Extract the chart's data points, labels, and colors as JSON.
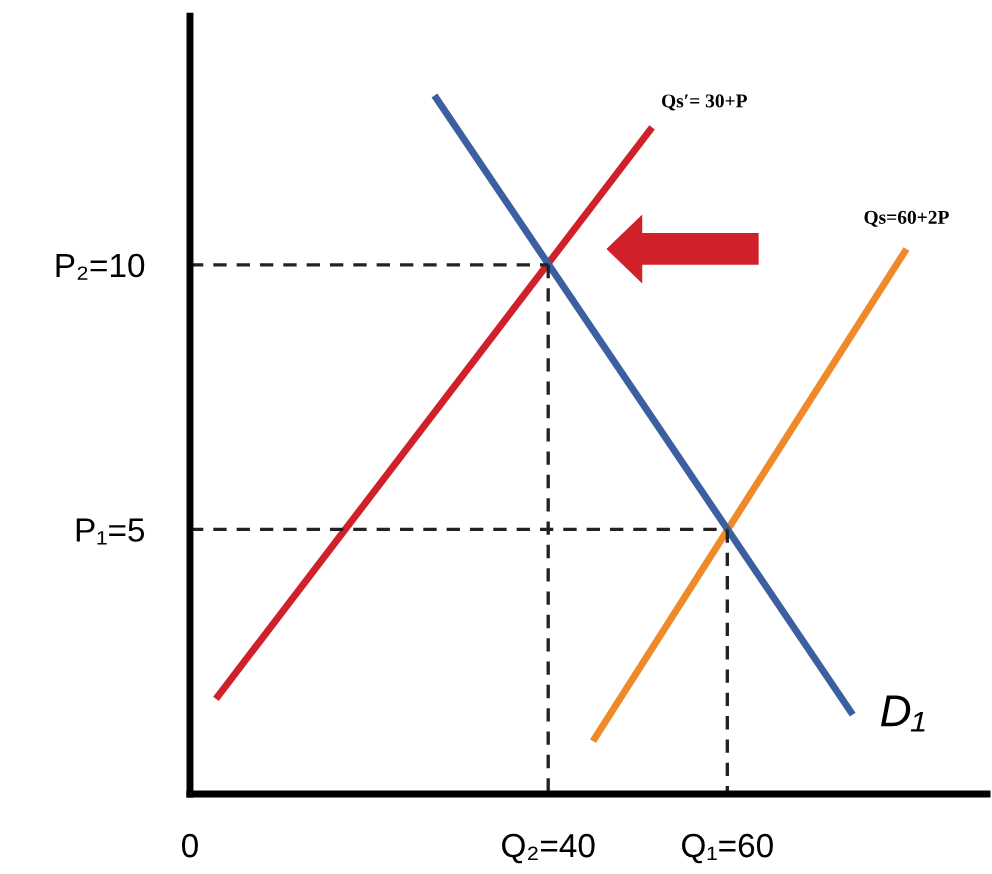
{
  "chart_data": {
    "type": "line",
    "legend": false,
    "grid": false,
    "tick_labels": "xy",
    "marker": "none",
    "xlim": [
      0,
      89
    ],
    "ylim": [
      0,
      14.7
    ],
    "xticks": [
      0,
      {
        "value": 40,
        "label": "Q₂=40"
      },
      {
        "value": 60,
        "label": "Q₁=60"
      }
    ],
    "yticks": [
      {
        "value": 5,
        "label": "P₁=5"
      },
      {
        "value": 10,
        "label": "P₂=10"
      }
    ],
    "series": [
      {
        "name": "Qs′= 30+P",
        "color": "#d0212b",
        "x": [
          2.9,
          51.6
        ],
        "values": [
          1.8,
          12.6
        ],
        "line_style": "solid"
      },
      {
        "name": "Qs=60+2P",
        "color": "#f0892a",
        "x": [
          45,
          80
        ],
        "values": [
          1,
          10.3
        ],
        "line_style": "solid"
      },
      {
        "name": "D₁",
        "color": "#3b5fa0",
        "x": [
          27.3,
          74
        ],
        "values": [
          13.2,
          1.5
        ],
        "line_style": "solid"
      },
      {
        "color": "#222222",
        "x": [
          0,
          40
        ],
        "values": [
          10,
          10
        ],
        "line_style": "dashed"
      },
      {
        "color": "#222222",
        "x": [
          40,
          40
        ],
        "values": [
          10,
          0
        ],
        "line_style": "dashed"
      },
      {
        "color": "#222222",
        "x": [
          0,
          60
        ],
        "values": [
          5,
          5
        ],
        "line_style": "dashed"
      },
      {
        "color": "#222222",
        "x": [
          60,
          60
        ],
        "values": [
          5,
          0
        ],
        "line_style": "dashed"
      }
    ]
  }
}
